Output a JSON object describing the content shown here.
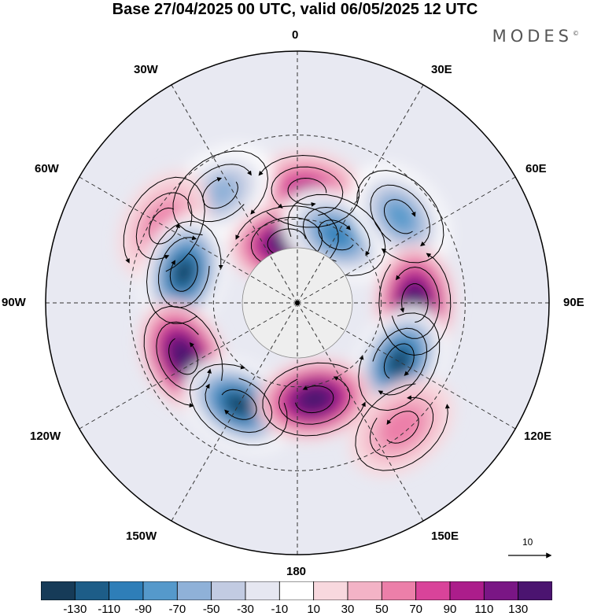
{
  "title": "Base 27/04/2025 00 UTC, valid 06/05/2025 12 UTC",
  "brand": "MODES",
  "brand_mark": "©",
  "longitude_labels": [
    {
      "key": "0",
      "text": "0"
    },
    {
      "key": "30E",
      "text": "30E"
    },
    {
      "key": "60E",
      "text": "60E"
    },
    {
      "key": "90E",
      "text": "90E"
    },
    {
      "key": "120E",
      "text": "120E"
    },
    {
      "key": "150E",
      "text": "150E"
    },
    {
      "key": "180",
      "text": "180"
    },
    {
      "key": "150W",
      "text": "150W"
    },
    {
      "key": "120W",
      "text": "120W"
    },
    {
      "key": "90W",
      "text": "90W"
    },
    {
      "key": "60W",
      "text": "60W"
    },
    {
      "key": "30W",
      "text": "30W"
    }
  ],
  "reference_vector": "10",
  "colorbar": {
    "ticks": [
      "-130",
      "-110",
      "-90",
      "-70",
      "-50",
      "-30",
      "-10",
      "10",
      "30",
      "50",
      "70",
      "90",
      "110",
      "130"
    ],
    "colors": [
      "#163b58",
      "#1d5d88",
      "#2e7eb8",
      "#5599cb",
      "#8fb1d8",
      "#c2cbe2",
      "#e6e7f1",
      "#ffffff",
      "#f8d8de",
      "#f3b3c6",
      "#ec7fa9",
      "#d9439a",
      "#ac1d8b",
      "#7a1685",
      "#4b1470"
    ]
  },
  "anomaly_centers": [
    {
      "sign": "positive",
      "level": 70,
      "lon_deg": 5,
      "colat_deg": 40
    },
    {
      "sign": "negative",
      "level": -50,
      "lon_deg": -35,
      "colat_deg": 48
    },
    {
      "sign": "positive",
      "level": 130,
      "lon_deg": -10,
      "colat_deg": 22
    },
    {
      "sign": "negative",
      "level": -90,
      "lon_deg": 30,
      "colat_deg": 28
    },
    {
      "sign": "negative",
      "level": -70,
      "lon_deg": 50,
      "colat_deg": 48
    },
    {
      "sign": "positive",
      "level": 30,
      "lon_deg": -60,
      "colat_deg": 55
    },
    {
      "sign": "negative",
      "level": -130,
      "lon_deg": -75,
      "colat_deg": 42
    },
    {
      "sign": "positive",
      "level": 130,
      "lon_deg": 90,
      "colat_deg": 42
    },
    {
      "sign": "positive",
      "level": 130,
      "lon_deg": -115,
      "colat_deg": 45
    },
    {
      "sign": "negative",
      "level": -130,
      "lon_deg": 120,
      "colat_deg": 42
    },
    {
      "sign": "negative",
      "level": -130,
      "lon_deg": -150,
      "colat_deg": 42
    },
    {
      "sign": "positive",
      "level": 130,
      "lon_deg": 170,
      "colat_deg": 35
    },
    {
      "sign": "positive",
      "level": 30,
      "lon_deg": 140,
      "colat_deg": 58
    }
  ]
}
